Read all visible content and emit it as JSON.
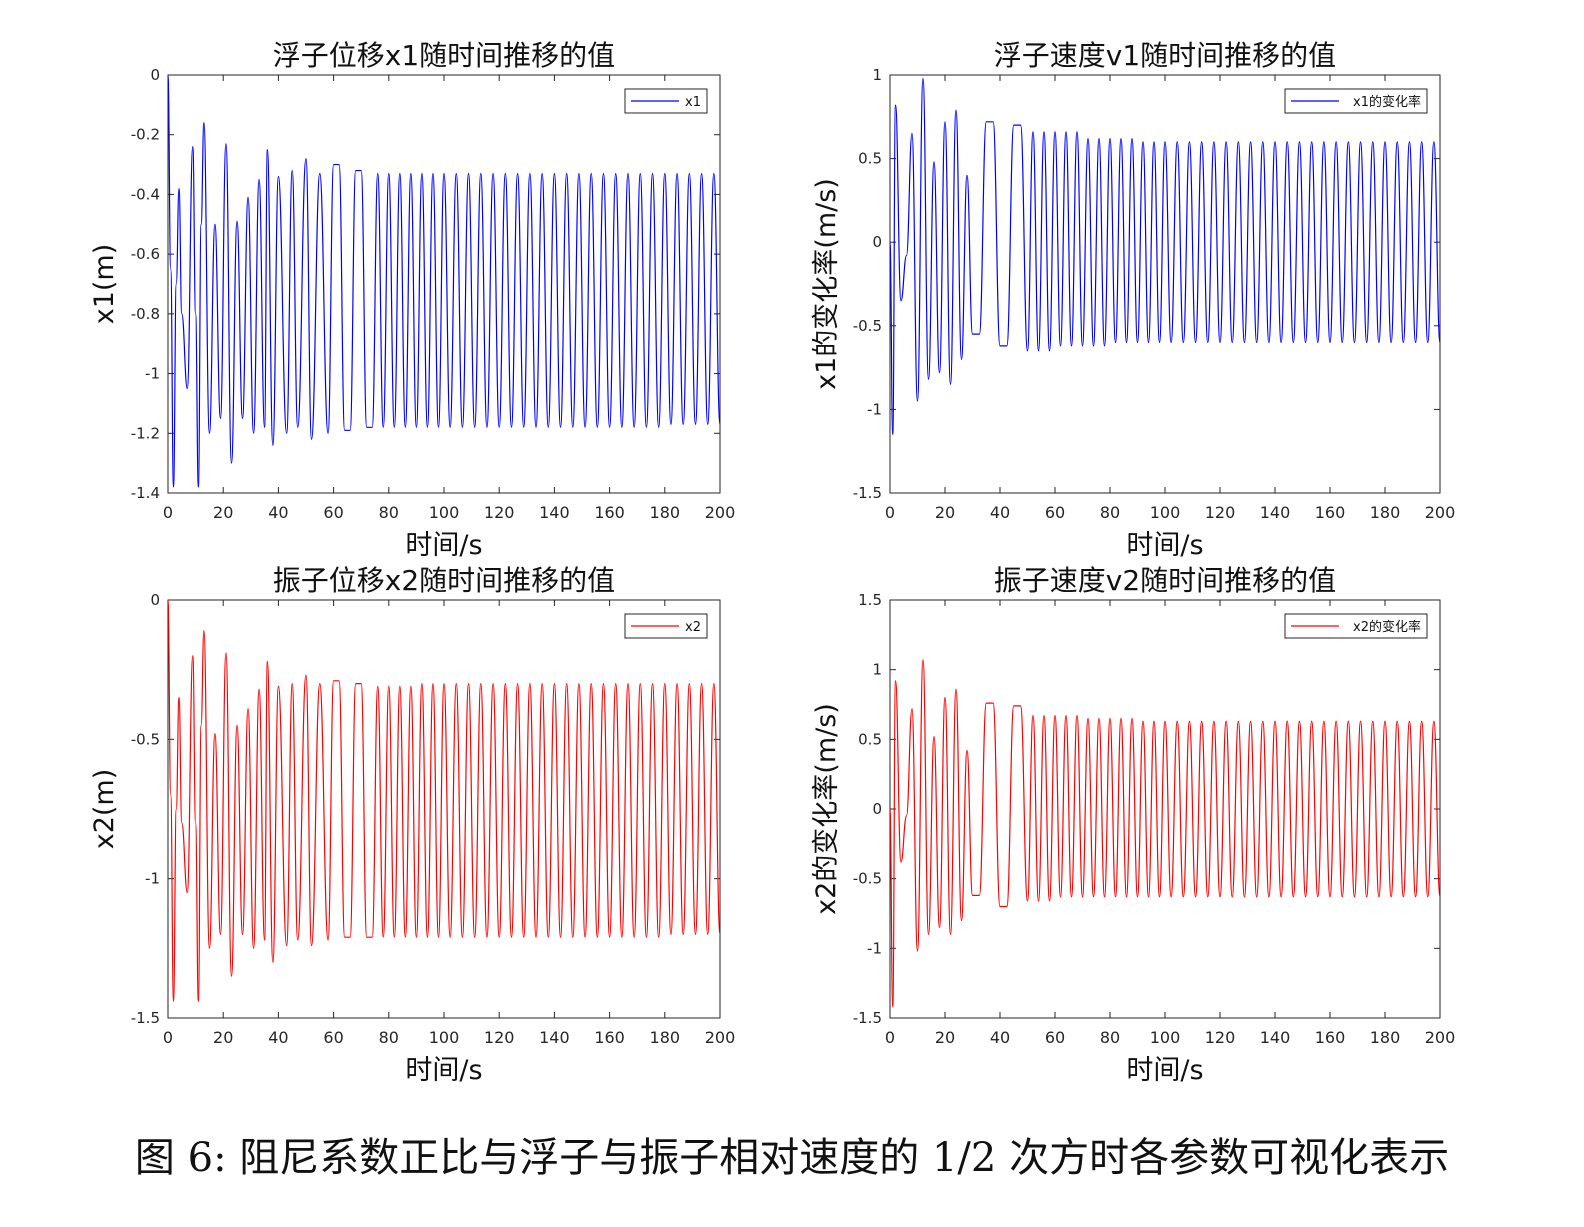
{
  "caption": "图 6: 阻尼系数正比与浮子与振子相对速度的 1/2 次方时各参数可视化表示",
  "chart_data": [
    {
      "type": "line",
      "title": "浮子位移x1随时间推移的值",
      "xlabel": "时间/s",
      "ylabel": "x1(m)",
      "xlim": [
        0,
        200
      ],
      "ylim": [
        -1.4,
        0
      ],
      "xticks": [
        0,
        20,
        40,
        60,
        80,
        100,
        120,
        140,
        160,
        180,
        200
      ],
      "yticks": [
        0,
        -0.2,
        -0.4,
        -0.6,
        -0.8,
        -1,
        -1.2,
        -1.4
      ],
      "legend_position": "top-right",
      "grid": false,
      "series": [
        {
          "name": "x1",
          "color": "#0000ff",
          "x": [
            0,
            1,
            2,
            3,
            4,
            5,
            7,
            9,
            10,
            11,
            12,
            13,
            15,
            17,
            19,
            21,
            23,
            25,
            27,
            29,
            31,
            33,
            35,
            36,
            38,
            40,
            43,
            45,
            47,
            50,
            52,
            55,
            58,
            60,
            64,
            68,
            72,
            80,
            90,
            100,
            120,
            140,
            160,
            180,
            200
          ],
          "y": [
            0,
            -0.65,
            -1.38,
            -0.7,
            -0.38,
            -0.8,
            -1.05,
            -0.24,
            -0.8,
            -1.38,
            -0.5,
            -0.16,
            -1.2,
            -0.5,
            -1.15,
            -0.23,
            -1.3,
            -0.49,
            -1.15,
            -0.41,
            -1.2,
            -0.35,
            -1.18,
            -0.25,
            -1.24,
            -0.34,
            -1.2,
            -0.32,
            -1.18,
            -0.28,
            -1.22,
            -0.33,
            -1.2,
            -0.3,
            -1.19,
            -0.32,
            -1.18,
            -0.33,
            -1.18,
            -0.33,
            -1.18,
            -0.33,
            -1.18,
            -0.33,
            -1.17
          ]
        }
      ]
    },
    {
      "type": "line",
      "title": "浮子速度v1随时间推移的值",
      "xlabel": "时间/s",
      "ylabel": "x1的变化率(m/s)",
      "xlim": [
        0,
        200
      ],
      "ylim": [
        -1.5,
        1
      ],
      "xticks": [
        0,
        20,
        40,
        60,
        80,
        100,
        120,
        140,
        160,
        180,
        200
      ],
      "yticks": [
        1,
        0.5,
        0,
        -0.5,
        -1,
        -1.5
      ],
      "legend_position": "top-right",
      "grid": false,
      "series": [
        {
          "name": "x1的变化率",
          "color": "#0000ff",
          "x": [
            0,
            1,
            2,
            4,
            6,
            8,
            10,
            12,
            14,
            16,
            18,
            20,
            22,
            24,
            26,
            28,
            30,
            35,
            40,
            45,
            50,
            60,
            70,
            80,
            90,
            100,
            120,
            140,
            160,
            180,
            200
          ],
          "y": [
            0,
            -1.15,
            0.82,
            -0.35,
            -0.08,
            0.65,
            -0.95,
            0.98,
            -0.82,
            0.48,
            -0.78,
            0.72,
            -0.85,
            0.79,
            -0.7,
            0.4,
            -0.55,
            0.72,
            -0.62,
            0.7,
            -0.65,
            0.66,
            -0.62,
            0.62,
            -0.6,
            0.6,
            -0.6,
            0.6,
            -0.6,
            0.6,
            -0.6
          ]
        }
      ]
    },
    {
      "type": "line",
      "title": "振子位移x2随时间推移的值",
      "xlabel": "时间/s",
      "ylabel": "x2(m)",
      "xlim": [
        0,
        200
      ],
      "ylim": [
        -1.5,
        0
      ],
      "xticks": [
        0,
        20,
        40,
        60,
        80,
        100,
        120,
        140,
        160,
        180,
        200
      ],
      "yticks": [
        0,
        -0.5,
        -1,
        -1.5
      ],
      "legend_position": "top-right",
      "grid": false,
      "series": [
        {
          "name": "x2",
          "color": "#ff0000",
          "x": [
            0,
            1,
            2,
            3,
            4,
            5,
            7,
            9,
            10,
            11,
            12,
            13,
            15,
            17,
            19,
            21,
            23,
            25,
            27,
            29,
            31,
            33,
            35,
            36,
            38,
            40,
            43,
            45,
            47,
            50,
            52,
            55,
            58,
            60,
            64,
            68,
            72,
            80,
            90,
            100,
            120,
            140,
            160,
            180,
            200
          ],
          "y": [
            0,
            -0.7,
            -1.44,
            -0.75,
            -0.35,
            -0.8,
            -1.05,
            -0.2,
            -0.8,
            -1.44,
            -0.45,
            -0.11,
            -1.25,
            -0.48,
            -1.2,
            -0.19,
            -1.35,
            -0.45,
            -1.2,
            -0.39,
            -1.25,
            -0.32,
            -1.22,
            -0.22,
            -1.3,
            -0.31,
            -1.24,
            -0.3,
            -1.22,
            -0.27,
            -1.24,
            -0.3,
            -1.22,
            -0.29,
            -1.21,
            -0.3,
            -1.21,
            -0.31,
            -1.21,
            -0.3,
            -1.21,
            -0.3,
            -1.21,
            -0.3,
            -1.2
          ]
        }
      ]
    },
    {
      "type": "line",
      "title": "振子速度v2随时间推移的值",
      "xlabel": "时间/s",
      "ylabel": "x2的变化率(m/s)",
      "xlim": [
        0,
        200
      ],
      "ylim": [
        -1.5,
        1.5
      ],
      "xticks": [
        0,
        20,
        40,
        60,
        80,
        100,
        120,
        140,
        160,
        180,
        200
      ],
      "yticks": [
        1.5,
        1,
        0.5,
        0,
        -0.5,
        -1,
        -1.5
      ],
      "legend_position": "top-right",
      "grid": false,
      "series": [
        {
          "name": "x2的变化率",
          "color": "#ff0000",
          "x": [
            0,
            1,
            2,
            4,
            6,
            8,
            10,
            12,
            14,
            16,
            18,
            20,
            22,
            24,
            26,
            28,
            30,
            35,
            40,
            45,
            50,
            60,
            70,
            80,
            90,
            100,
            120,
            140,
            160,
            180,
            200
          ],
          "y": [
            0,
            -1.42,
            0.92,
            -0.38,
            -0.05,
            0.72,
            -1.02,
            1.07,
            -0.9,
            0.52,
            -0.85,
            0.8,
            -0.9,
            0.86,
            -0.8,
            0.42,
            -0.62,
            0.76,
            -0.7,
            0.74,
            -0.66,
            0.67,
            -0.63,
            0.65,
            -0.63,
            0.63,
            -0.63,
            0.63,
            -0.63,
            0.63,
            -0.63
          ]
        }
      ]
    }
  ]
}
